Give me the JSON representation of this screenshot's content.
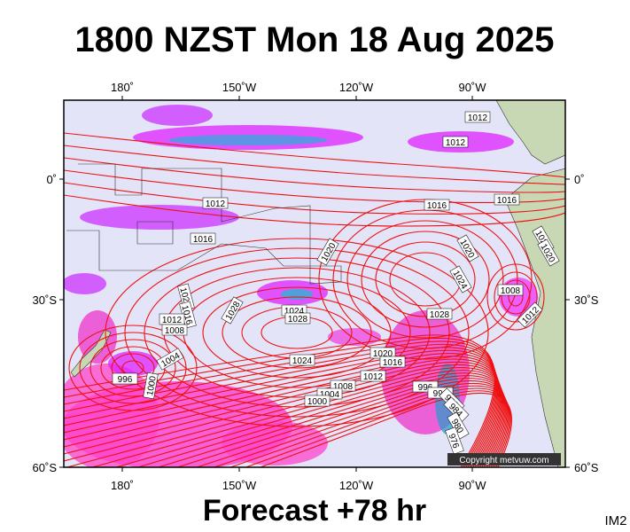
{
  "header": {
    "title": "1800 NZST Mon 18 Aug 2025"
  },
  "axes": {
    "lon_labels": [
      "180˚",
      "150˚W",
      "120˚W",
      "90˚W"
    ],
    "lat_labels": [
      "0˚",
      "30˚S",
      "60˚S"
    ]
  },
  "isobars": {
    "labels": [
      "1012",
      "1012",
      "1016",
      "1016",
      "1012",
      "1016",
      "1020",
      "1020",
      "1024",
      "1020",
      "1020",
      "1008",
      "1012",
      "1028",
      "1028",
      "1024",
      "1028",
      "1020",
      "1016",
      "1012",
      "1008",
      "1004",
      "996",
      "1000",
      "1024",
      "1020",
      "1016",
      "1012",
      "1008",
      "1004",
      "1000",
      "996",
      "992",
      "988",
      "984",
      "980",
      "976"
    ]
  },
  "copyright": "Copyright metvuw.com",
  "footer": {
    "forecast": "Forecast +78 hr",
    "code": "IM2"
  }
}
